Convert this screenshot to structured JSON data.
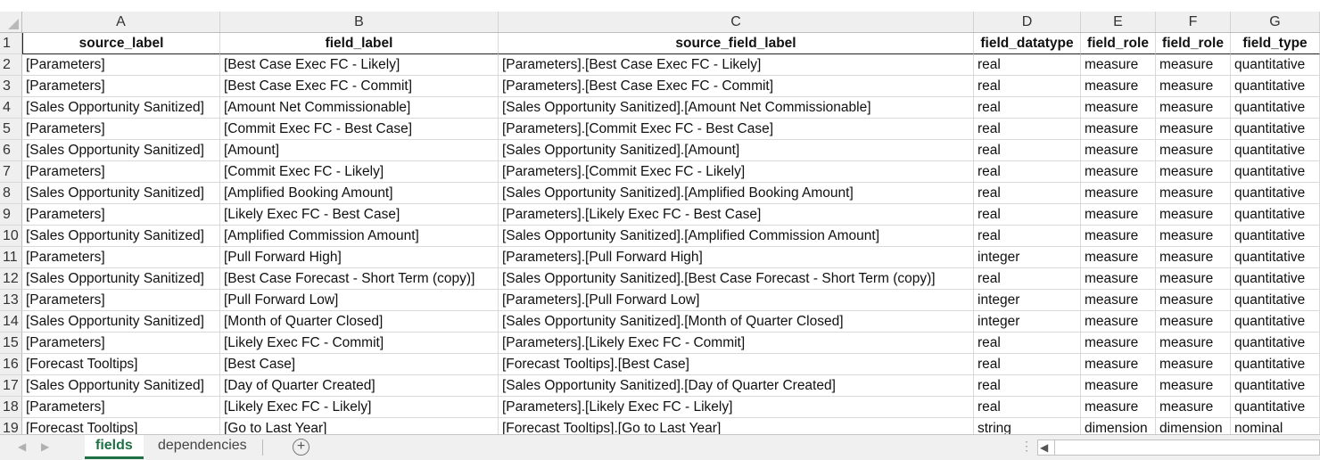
{
  "columns": [
    "A",
    "B",
    "C",
    "D",
    "E",
    "F",
    "G"
  ],
  "header_row_number": "1",
  "headers": [
    "source_label",
    "field_label",
    "source_field_label",
    "field_datatype",
    "field_role",
    "field_role",
    "field_type"
  ],
  "rows": [
    {
      "n": "2",
      "cells": [
        "[Parameters]",
        "[Best Case Exec FC - Likely]",
        "[Parameters].[Best Case Exec FC - Likely]",
        "real",
        "measure",
        "measure",
        "quantitative"
      ]
    },
    {
      "n": "3",
      "cells": [
        "[Parameters]",
        "[Best Case Exec FC - Commit]",
        "[Parameters].[Best Case Exec FC - Commit]",
        "real",
        "measure",
        "measure",
        "quantitative"
      ]
    },
    {
      "n": "4",
      "cells": [
        "[Sales Opportunity Sanitized]",
        "[Amount Net Commissionable]",
        "[Sales Opportunity Sanitized].[Amount Net Commissionable]",
        "real",
        "measure",
        "measure",
        "quantitative"
      ]
    },
    {
      "n": "5",
      "cells": [
        "[Parameters]",
        "[Commit Exec FC - Best Case]",
        "[Parameters].[Commit Exec FC - Best Case]",
        "real",
        "measure",
        "measure",
        "quantitative"
      ]
    },
    {
      "n": "6",
      "cells": [
        "[Sales Opportunity Sanitized]",
        "[Amount]",
        "[Sales Opportunity Sanitized].[Amount]",
        "real",
        "measure",
        "measure",
        "quantitative"
      ]
    },
    {
      "n": "7",
      "cells": [
        "[Parameters]",
        "[Commit Exec FC - Likely]",
        "[Parameters].[Commit Exec FC - Likely]",
        "real",
        "measure",
        "measure",
        "quantitative"
      ]
    },
    {
      "n": "8",
      "cells": [
        "[Sales Opportunity Sanitized]",
        "[Amplified Booking Amount]",
        "[Sales Opportunity Sanitized].[Amplified Booking Amount]",
        "real",
        "measure",
        "measure",
        "quantitative"
      ]
    },
    {
      "n": "9",
      "cells": [
        "[Parameters]",
        "[Likely Exec FC - Best Case]",
        "[Parameters].[Likely Exec FC - Best Case]",
        "real",
        "measure",
        "measure",
        "quantitative"
      ]
    },
    {
      "n": "10",
      "cells": [
        "[Sales Opportunity Sanitized]",
        "[Amplified Commission Amount]",
        "[Sales Opportunity Sanitized].[Amplified Commission Amount]",
        "real",
        "measure",
        "measure",
        "quantitative"
      ]
    },
    {
      "n": "11",
      "cells": [
        "[Parameters]",
        "[Pull Forward High]",
        "[Parameters].[Pull Forward High]",
        "integer",
        "measure",
        "measure",
        "quantitative"
      ]
    },
    {
      "n": "12",
      "cells": [
        "[Sales Opportunity Sanitized]",
        "[Best Case Forecast - Short Term (copy)]",
        "[Sales Opportunity Sanitized].[Best Case Forecast - Short Term (copy)]",
        "real",
        "measure",
        "measure",
        "quantitative"
      ]
    },
    {
      "n": "13",
      "cells": [
        "[Parameters]",
        "[Pull Forward Low]",
        "[Parameters].[Pull Forward Low]",
        "integer",
        "measure",
        "measure",
        "quantitative"
      ]
    },
    {
      "n": "14",
      "cells": [
        "[Sales Opportunity Sanitized]",
        "[Month of Quarter Closed]",
        "[Sales Opportunity Sanitized].[Month of Quarter Closed]",
        "integer",
        "measure",
        "measure",
        "quantitative"
      ]
    },
    {
      "n": "15",
      "cells": [
        "[Parameters]",
        "[Likely Exec FC - Commit]",
        "[Parameters].[Likely Exec FC - Commit]",
        "real",
        "measure",
        "measure",
        "quantitative"
      ]
    },
    {
      "n": "16",
      "cells": [
        "[Forecast Tooltips]",
        "[Best Case]",
        "[Forecast Tooltips].[Best Case]",
        "real",
        "measure",
        "measure",
        "quantitative"
      ]
    },
    {
      "n": "17",
      "cells": [
        "[Sales Opportunity Sanitized]",
        "[Day of Quarter Created]",
        "[Sales Opportunity Sanitized].[Day of Quarter Created]",
        "real",
        "measure",
        "measure",
        "quantitative"
      ]
    },
    {
      "n": "18",
      "cells": [
        "[Parameters]",
        "[Likely Exec FC - Likely]",
        "[Parameters].[Likely Exec FC - Likely]",
        "real",
        "measure",
        "measure",
        "quantitative"
      ]
    },
    {
      "n": "19",
      "cells": [
        "[Forecast Tooltips]",
        "[Go to Last Year]",
        "[Forecast Tooltips].[Go to Last Year]",
        "string",
        "dimension",
        "dimension",
        "nominal"
      ]
    }
  ],
  "sheet_tabs": {
    "active": "fields",
    "other": "dependencies"
  },
  "icons": {
    "add_sheet": "plus-circle-icon",
    "prev_sheet": "chevron-left-icon",
    "next_sheet": "chevron-right-icon"
  },
  "colors": {
    "active_tab": "#1e7145",
    "header_bg": "#efefef"
  }
}
